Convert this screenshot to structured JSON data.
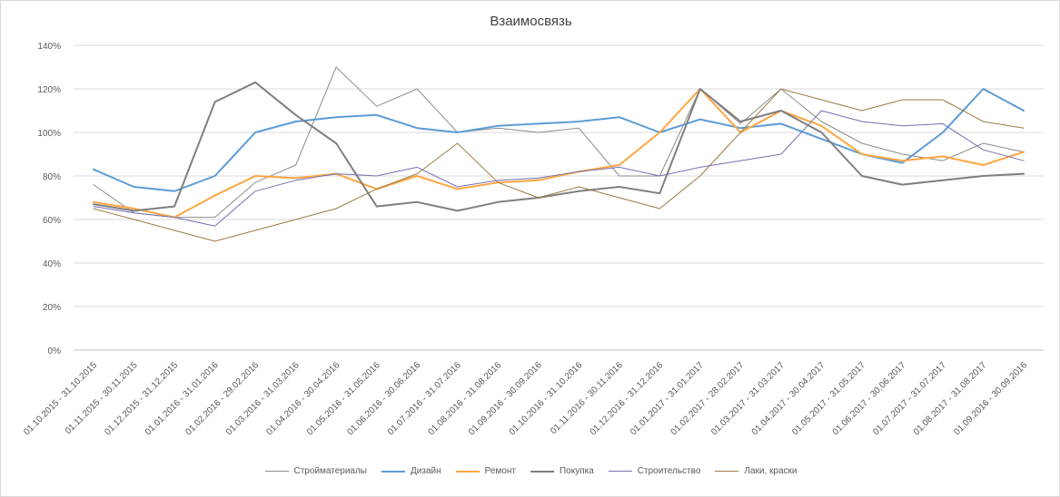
{
  "chart_data": {
    "type": "line",
    "title": "Взаимосвязь",
    "xlabel": "",
    "ylabel": "",
    "ylim": [
      0,
      140
    ],
    "yticks": [
      "0%",
      "20%",
      "40%",
      "60%",
      "80%",
      "100%",
      "120%",
      "140%"
    ],
    "grid": true,
    "legend_position": "bottom",
    "categories": [
      "01.10.2015 - 31.10.2015",
      "01.11.2015 - 30.11.2015",
      "01.12.2015 - 31.12.2015",
      "01.01.2016 - 31.01.2016",
      "01.02.2016 - 29.02.2016",
      "01.03.2016 - 31.03.2016",
      "01.04.2016 - 30.04.2016",
      "01.05.2016 - 31.05.2016",
      "01.06.2016 - 30.06.2016",
      "01.07.2016 - 31.07.2016",
      "01.08.2016 - 31.08.2016",
      "01.09.2016 - 30.09.2016",
      "01.10.2016 - 31.10.2016",
      "01.11.2016 - 30.11.2016",
      "01.12.2016 - 31.12.2016",
      "01.01.2017 - 31.01.2017",
      "01.02.2017 - 28.02.2017",
      "01.03.2017 - 31.03.2017",
      "01.04.2017 - 30.04.2017",
      "01.05.2017 - 31.05.2017",
      "01.06.2017 - 30.06.2017",
      "01.07.2017 - 31.07.2017",
      "01.08.2017 - 31.08.2017",
      "01.09.2016 - 30.09.2016"
    ],
    "series": [
      {
        "name": "Стройматериалы",
        "color": "#8c8c8c",
        "width": 1,
        "values": [
          76,
          63,
          61,
          61,
          77,
          85,
          130,
          112,
          120,
          100,
          102,
          100,
          102,
          80,
          80,
          120,
          104,
          120,
          105,
          95,
          90,
          87,
          95,
          91
        ]
      },
      {
        "name": "Дизайн",
        "color": "#5b9bd5",
        "width": 2,
        "values": [
          83,
          75,
          73,
          80,
          100,
          105,
          107,
          108,
          102,
          100,
          103,
          104,
          105,
          107,
          100,
          106,
          102,
          104,
          97,
          90,
          86,
          100,
          120,
          110
        ]
      },
      {
        "name": "Ремонт",
        "color": "#ffa640",
        "width": 2,
        "values": [
          68,
          65,
          61,
          71,
          80,
          79,
          81,
          74,
          80,
          74,
          77,
          78,
          82,
          85,
          100,
          120,
          100,
          110,
          103,
          90,
          87,
          89,
          85,
          91
        ]
      },
      {
        "name": "Покупка",
        "color": "#7f7f7f",
        "width": 2,
        "values": [
          67,
          64,
          66,
          114,
          123,
          108,
          95,
          66,
          68,
          64,
          68,
          70,
          73,
          75,
          72,
          120,
          105,
          110,
          100,
          80,
          76,
          78,
          80,
          81
        ]
      },
      {
        "name": "Строительство",
        "color": "#7570b3",
        "width": 1,
        "values": [
          66,
          63,
          61,
          57,
          73,
          78,
          81,
          80,
          84,
          75,
          78,
          79,
          82,
          84,
          80,
          84,
          87,
          90,
          110,
          105,
          103,
          104,
          92,
          87
        ]
      },
      {
        "name": "Лаки, краски",
        "color": "#9c7a45",
        "width": 1,
        "values": [
          65,
          60,
          55,
          50,
          55,
          60,
          65,
          74,
          81,
          95,
          77,
          70,
          75,
          70,
          65,
          80,
          100,
          120,
          115,
          110,
          115,
          115,
          105,
          102
        ]
      }
    ]
  }
}
